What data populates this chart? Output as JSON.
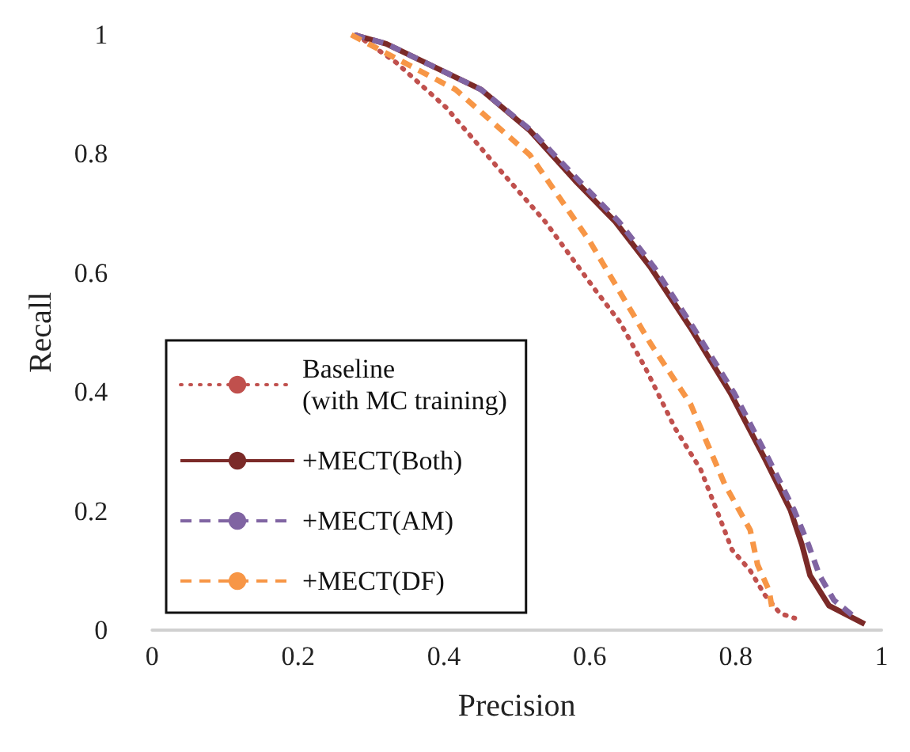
{
  "chart_data": {
    "type": "line",
    "xlabel": "Precision",
    "ylabel": "Recall",
    "xlim": [
      0,
      1
    ],
    "ylim": [
      0,
      1
    ],
    "xticks": [
      0,
      0.2,
      0.4,
      0.6,
      0.8,
      1
    ],
    "yticks": [
      0,
      0.2,
      0.4,
      0.6,
      0.8,
      1
    ],
    "grid": false,
    "legend": "bottom left",
    "marker": "none",
    "series": [
      {
        "name": "Baseline\n(with MC training)",
        "color": "#c0504d",
        "line_style": "dotted",
        "x": [
          0.28,
          0.334,
          0.403,
          0.471,
          0.539,
          0.609,
          0.641,
          0.676,
          0.717,
          0.752,
          0.779,
          0.795,
          0.82,
          0.84,
          0.861,
          0.881
        ],
        "values": [
          1.0,
          0.954,
          0.878,
          0.781,
          0.686,
          0.569,
          0.518,
          0.441,
          0.339,
          0.27,
          0.186,
          0.135,
          0.1,
          0.059,
          0.028,
          0.02
        ]
      },
      {
        "name": "+MECT(Both)",
        "color": "#7b2a28",
        "line_style": "solid",
        "x": [
          0.277,
          0.321,
          0.451,
          0.518,
          0.58,
          0.635,
          0.683,
          0.738,
          0.793,
          0.84,
          0.875,
          0.891,
          0.902,
          0.928,
          0.977
        ],
        "values": [
          1.0,
          0.985,
          0.908,
          0.839,
          0.755,
          0.686,
          0.61,
          0.508,
          0.398,
          0.288,
          0.202,
          0.143,
          0.092,
          0.041,
          0.01
        ]
      },
      {
        "name": "+MECT(AM)",
        "color": "#8064a2",
        "line_style": "dashed",
        "x": [
          0.277,
          0.321,
          0.451,
          0.52,
          0.585,
          0.64,
          0.688,
          0.742,
          0.798,
          0.845,
          0.88,
          0.9,
          0.915,
          0.935,
          0.965
        ],
        "values": [
          1.0,
          0.985,
          0.908,
          0.839,
          0.755,
          0.686,
          0.61,
          0.508,
          0.398,
          0.288,
          0.202,
          0.143,
          0.092,
          0.05,
          0.02
        ]
      },
      {
        "name": "+MECT(DF)",
        "color": "#f79646",
        "line_style": "dashed",
        "x": [
          0.273,
          0.416,
          0.518,
          0.6,
          0.683,
          0.738,
          0.785,
          0.82,
          0.83,
          0.846,
          0.85
        ],
        "values": [
          1.0,
          0.908,
          0.798,
          0.653,
          0.482,
          0.38,
          0.245,
          0.168,
          0.11,
          0.066,
          0.036
        ]
      }
    ]
  }
}
